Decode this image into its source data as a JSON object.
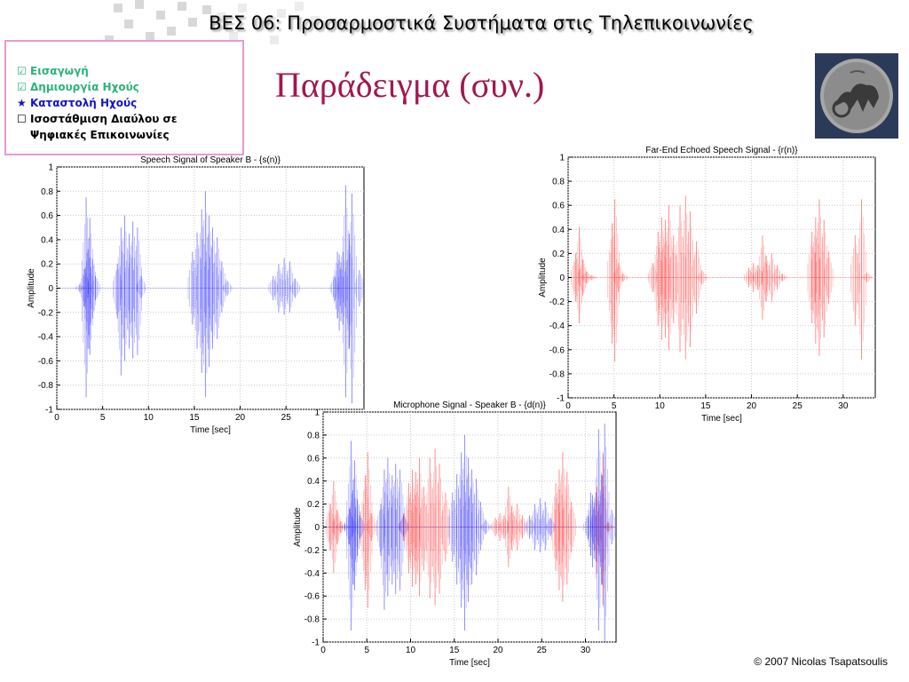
{
  "header": {
    "title": "ΒΕΣ 06: Προσαρμοστικά Συστήματα στις Τηλεπικοινωνίες"
  },
  "nav": {
    "items": [
      {
        "marker": "☑",
        "label": "Εισαγωγή",
        "state": "done"
      },
      {
        "marker": "☑",
        "label": "Δημιουργία Ηχούς",
        "state": "done"
      },
      {
        "marker": "★",
        "label": "Καταστολή Ηχούς",
        "state": "current"
      },
      {
        "marker": "☐",
        "label": "Ισοστάθμιση Διαύλου σε",
        "state": "todo"
      },
      {
        "marker": "",
        "label": "Ψηφιακές Επικοινωνίες",
        "state": "todo"
      }
    ]
  },
  "slide": {
    "title": "Παράδειγμα (συν.)"
  },
  "footer": {
    "copyright": "© 2007 Nicolas Tsapatsoulis"
  },
  "colors": {
    "speech": "#0000ff",
    "echo": "#ff0000",
    "nav_border": "#e79ad0",
    "title": "#a01850"
  },
  "chart_data": [
    {
      "id": "speech",
      "type": "line",
      "title": "Speech Signal of Speaker B - {s(n)}",
      "xlabel": "Time [sec]",
      "ylabel": "Amplitude",
      "xlim": [
        0,
        33.5
      ],
      "ylim": [
        -1,
        1
      ],
      "xticks": [
        0,
        5,
        10,
        15,
        20,
        25
      ],
      "xtick_labels": [
        "0",
        "5",
        "10",
        "15",
        "20",
        "25"
      ],
      "yticks": [
        -1,
        -0.8,
        -0.6,
        -0.4,
        -0.2,
        0,
        0.2,
        0.4,
        0.6,
        0.8,
        1
      ],
      "ytick_labels": [
        "-1",
        "-0.8",
        "-0.6",
        "-0.4",
        "-0.2",
        "0",
        "0.2",
        "0.4",
        "0.6",
        "0.8",
        "1"
      ],
      "grid": true,
      "series": [
        {
          "color": "#0000ff",
          "x": [
            2.5,
            3.0,
            3.2,
            3.4,
            3.6,
            3.9,
            4.2,
            6.6,
            7.0,
            7.4,
            7.9,
            8.3,
            8.8,
            9.2,
            14.8,
            15.3,
            15.8,
            16.2,
            16.6,
            17.0,
            17.5,
            18.0,
            18.6,
            23.6,
            24.2,
            24.8,
            25.4,
            26.0,
            30.3,
            30.6,
            30.8,
            31.2,
            31.5,
            31.9,
            32.2,
            33.0
          ],
          "ymax": [
            0.03,
            0.16,
            0.75,
            0.32,
            0.58,
            0.24,
            0.1,
            0.2,
            0.5,
            0.6,
            0.45,
            0.55,
            0.5,
            0.1,
            0.3,
            0.46,
            0.65,
            0.8,
            0.6,
            0.5,
            0.42,
            0.22,
            0.06,
            0.1,
            0.2,
            0.25,
            0.22,
            0.08,
            0.1,
            0.3,
            0.28,
            0.3,
            0.85,
            0.45,
            0.78,
            0.15
          ],
          "ymin": [
            -0.03,
            -0.15,
            -0.9,
            -0.5,
            -0.55,
            -0.25,
            -0.1,
            -0.25,
            -0.72,
            -0.6,
            -0.5,
            -0.58,
            -0.55,
            -0.08,
            -0.3,
            -0.5,
            -0.7,
            -0.9,
            -0.65,
            -0.5,
            -0.42,
            -0.2,
            -0.06,
            -0.1,
            -0.2,
            -0.22,
            -0.2,
            -0.08,
            -0.1,
            -0.25,
            -0.35,
            -0.3,
            -0.9,
            -0.5,
            -0.95,
            -0.15
          ]
        }
      ]
    },
    {
      "id": "echo",
      "type": "line",
      "title": "Far-End Echoed Speech Signal - {r(n)}",
      "xlabel": "Time [sec]",
      "ylabel": "Amplitude",
      "xlim": [
        0,
        33.5
      ],
      "ylim": [
        -1,
        1
      ],
      "xticks": [
        0,
        5,
        10,
        15,
        20,
        25,
        30
      ],
      "xtick_labels": [
        "0",
        "5",
        "10",
        "15",
        "20",
        "25",
        "30"
      ],
      "yticks": [
        -1,
        -0.8,
        -0.6,
        -0.4,
        -0.2,
        0,
        0.2,
        0.4,
        0.6,
        0.8,
        1
      ],
      "ytick_labels": [
        "-1",
        "-0.8",
        "-0.6",
        "-0.4",
        "-0.2",
        "0",
        "0.2",
        "0.4",
        "0.6",
        "0.8",
        "1"
      ],
      "grid": true,
      "series": [
        {
          "color": "#ff0000",
          "x": [
            0.8,
            1.2,
            1.6,
            2.0,
            2.6,
            4.8,
            5.1,
            5.5,
            6.0,
            9.2,
            9.8,
            10.2,
            10.6,
            11.0,
            11.5,
            12.2,
            12.8,
            13.3,
            14.0,
            14.6,
            19.7,
            20.2,
            20.7,
            21.2,
            21.6,
            22.2,
            22.8,
            23.4,
            26.6,
            27.0,
            27.4,
            27.9,
            28.4,
            31.3,
            32.0,
            32.6
          ],
          "ymax": [
            0.2,
            0.42,
            0.15,
            0.05,
            0.02,
            0.45,
            0.65,
            0.12,
            0.03,
            0.12,
            0.38,
            0.5,
            0.48,
            0.6,
            0.35,
            0.6,
            0.68,
            0.55,
            0.3,
            0.06,
            0.08,
            0.12,
            0.1,
            0.35,
            0.18,
            0.2,
            0.1,
            0.03,
            0.38,
            0.5,
            0.65,
            0.48,
            0.22,
            0.35,
            0.65,
            0.04
          ],
          "ymin": [
            -0.2,
            -0.38,
            -0.15,
            -0.05,
            -0.02,
            -0.55,
            -0.7,
            -0.12,
            -0.03,
            -0.12,
            -0.4,
            -0.52,
            -0.5,
            -0.6,
            -0.38,
            -0.62,
            -0.68,
            -0.58,
            -0.3,
            -0.06,
            -0.08,
            -0.12,
            -0.1,
            -0.35,
            -0.2,
            -0.2,
            -0.1,
            -0.03,
            -0.38,
            -0.55,
            -0.65,
            -0.5,
            -0.22,
            -0.4,
            -0.68,
            -0.04
          ]
        }
      ]
    },
    {
      "id": "mic",
      "type": "line",
      "title": "Microphone Signal - Speaker B -  {d(n)}",
      "xlabel": "Time [sec]",
      "ylabel": "Amplitude",
      "xlim": [
        0,
        33.5
      ],
      "ylim": [
        -1,
        1
      ],
      "xticks": [
        0,
        5,
        10,
        15,
        20,
        25,
        30
      ],
      "xtick_labels": [
        "0",
        "5",
        "10",
        "15",
        "20",
        "25",
        "30"
      ],
      "yticks": [
        -1,
        -0.8,
        -0.6,
        -0.4,
        -0.2,
        0,
        0.2,
        0.4,
        0.6,
        0.8,
        1
      ],
      "ytick_labels": [
        "-1",
        "-0.8",
        "-0.6",
        "-0.4",
        "-0.2",
        "0",
        "0.2",
        "0.4",
        "0.6",
        "0.8",
        "1"
      ],
      "grid": true,
      "series": [
        {
          "color": "#ff0000",
          "x": [
            0.8,
            1.2,
            1.6,
            2.0,
            4.8,
            5.1,
            5.5,
            9.2,
            9.8,
            10.2,
            10.6,
            11.0,
            11.5,
            12.2,
            12.8,
            13.3,
            14.0,
            19.7,
            20.2,
            20.7,
            21.2,
            21.6,
            22.2,
            22.8,
            26.6,
            27.0,
            27.4,
            27.9,
            28.4,
            31.3,
            32.0,
            32.6
          ],
          "ymax": [
            0.2,
            0.4,
            0.15,
            0.05,
            0.45,
            0.65,
            0.12,
            0.12,
            0.38,
            0.5,
            0.48,
            0.6,
            0.35,
            0.6,
            0.68,
            0.55,
            0.3,
            0.08,
            0.12,
            0.1,
            0.35,
            0.18,
            0.2,
            0.1,
            0.38,
            0.5,
            0.65,
            0.48,
            0.22,
            0.35,
            0.65,
            0.04
          ],
          "ymin": [
            -0.2,
            -0.4,
            -0.15,
            -0.05,
            -0.55,
            -0.7,
            -0.12,
            -0.12,
            -0.4,
            -0.52,
            -0.5,
            -0.6,
            -0.38,
            -0.62,
            -0.68,
            -0.58,
            -0.3,
            -0.08,
            -0.12,
            -0.1,
            -0.35,
            -0.2,
            -0.2,
            -0.1,
            -0.38,
            -0.55,
            -0.65,
            -0.5,
            -0.22,
            -0.4,
            -0.68,
            -0.04
          ]
        },
        {
          "color": "#0000ff",
          "x": [
            2.5,
            3.0,
            3.2,
            3.4,
            3.6,
            3.9,
            4.2,
            6.6,
            7.0,
            7.4,
            7.9,
            8.3,
            8.8,
            9.2,
            14.8,
            15.3,
            15.8,
            16.2,
            16.6,
            17.0,
            17.5,
            18.0,
            18.6,
            23.6,
            24.2,
            24.8,
            25.4,
            26.0,
            30.3,
            30.6,
            30.8,
            31.2,
            31.5,
            31.9,
            32.2,
            33.0
          ],
          "ymax": [
            0.03,
            0.16,
            0.75,
            0.32,
            0.58,
            0.24,
            0.1,
            0.2,
            0.5,
            0.6,
            0.45,
            0.55,
            0.5,
            0.1,
            0.3,
            0.46,
            0.65,
            0.8,
            0.6,
            0.5,
            0.42,
            0.22,
            0.06,
            0.1,
            0.2,
            0.25,
            0.22,
            0.08,
            0.1,
            0.3,
            0.28,
            0.3,
            0.85,
            0.45,
            0.9,
            0.15
          ],
          "ymin": [
            -0.03,
            -0.15,
            -0.9,
            -0.5,
            -0.55,
            -0.25,
            -0.1,
            -0.25,
            -0.72,
            -0.6,
            -0.5,
            -0.58,
            -0.55,
            -0.08,
            -0.3,
            -0.5,
            -0.7,
            -0.9,
            -0.65,
            -0.5,
            -0.42,
            -0.2,
            -0.06,
            -0.1,
            -0.2,
            -0.22,
            -0.2,
            -0.08,
            -0.1,
            -0.25,
            -0.35,
            -0.3,
            -0.9,
            -0.5,
            -1.0,
            -0.15
          ]
        }
      ]
    }
  ]
}
